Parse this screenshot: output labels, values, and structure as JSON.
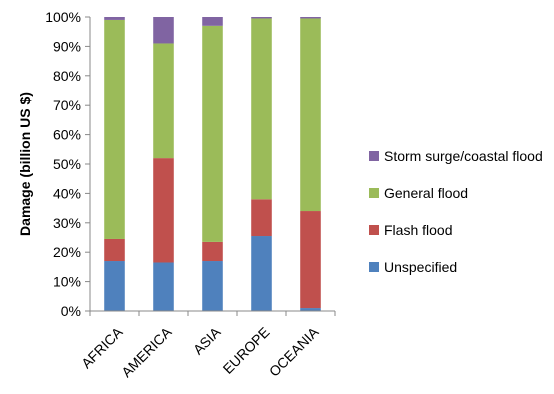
{
  "chart_data": {
    "type": "bar",
    "stacked": "percent",
    "title": "",
    "xlabel": "",
    "ylabel": "Damage (billion US $)",
    "ylim": [
      0,
      100
    ],
    "yticks": [
      "0%",
      "10%",
      "20%",
      "30%",
      "40%",
      "50%",
      "60%",
      "70%",
      "80%",
      "90%",
      "100%"
    ],
    "categories": [
      "AFRICA",
      "AMERICA",
      "ASIA",
      "EUROPE",
      "OCEANIA"
    ],
    "series": [
      {
        "name": "Unspecified",
        "color": "#4F81BD",
        "values": [
          17,
          16.5,
          17,
          25.5,
          1
        ]
      },
      {
        "name": "Flash flood",
        "color": "#C0504D",
        "values": [
          7.5,
          35.5,
          6.5,
          12.5,
          33
        ]
      },
      {
        "name": "General flood",
        "color": "#9BBB59",
        "values": [
          74.5,
          39,
          73.5,
          61.5,
          65.5
        ]
      },
      {
        "name": "Storm surge/coastal flood",
        "color": "#8064A2",
        "values": [
          1,
          9,
          3,
          0.5,
          0.5
        ]
      }
    ],
    "legend_position": "right",
    "grid": false
  }
}
